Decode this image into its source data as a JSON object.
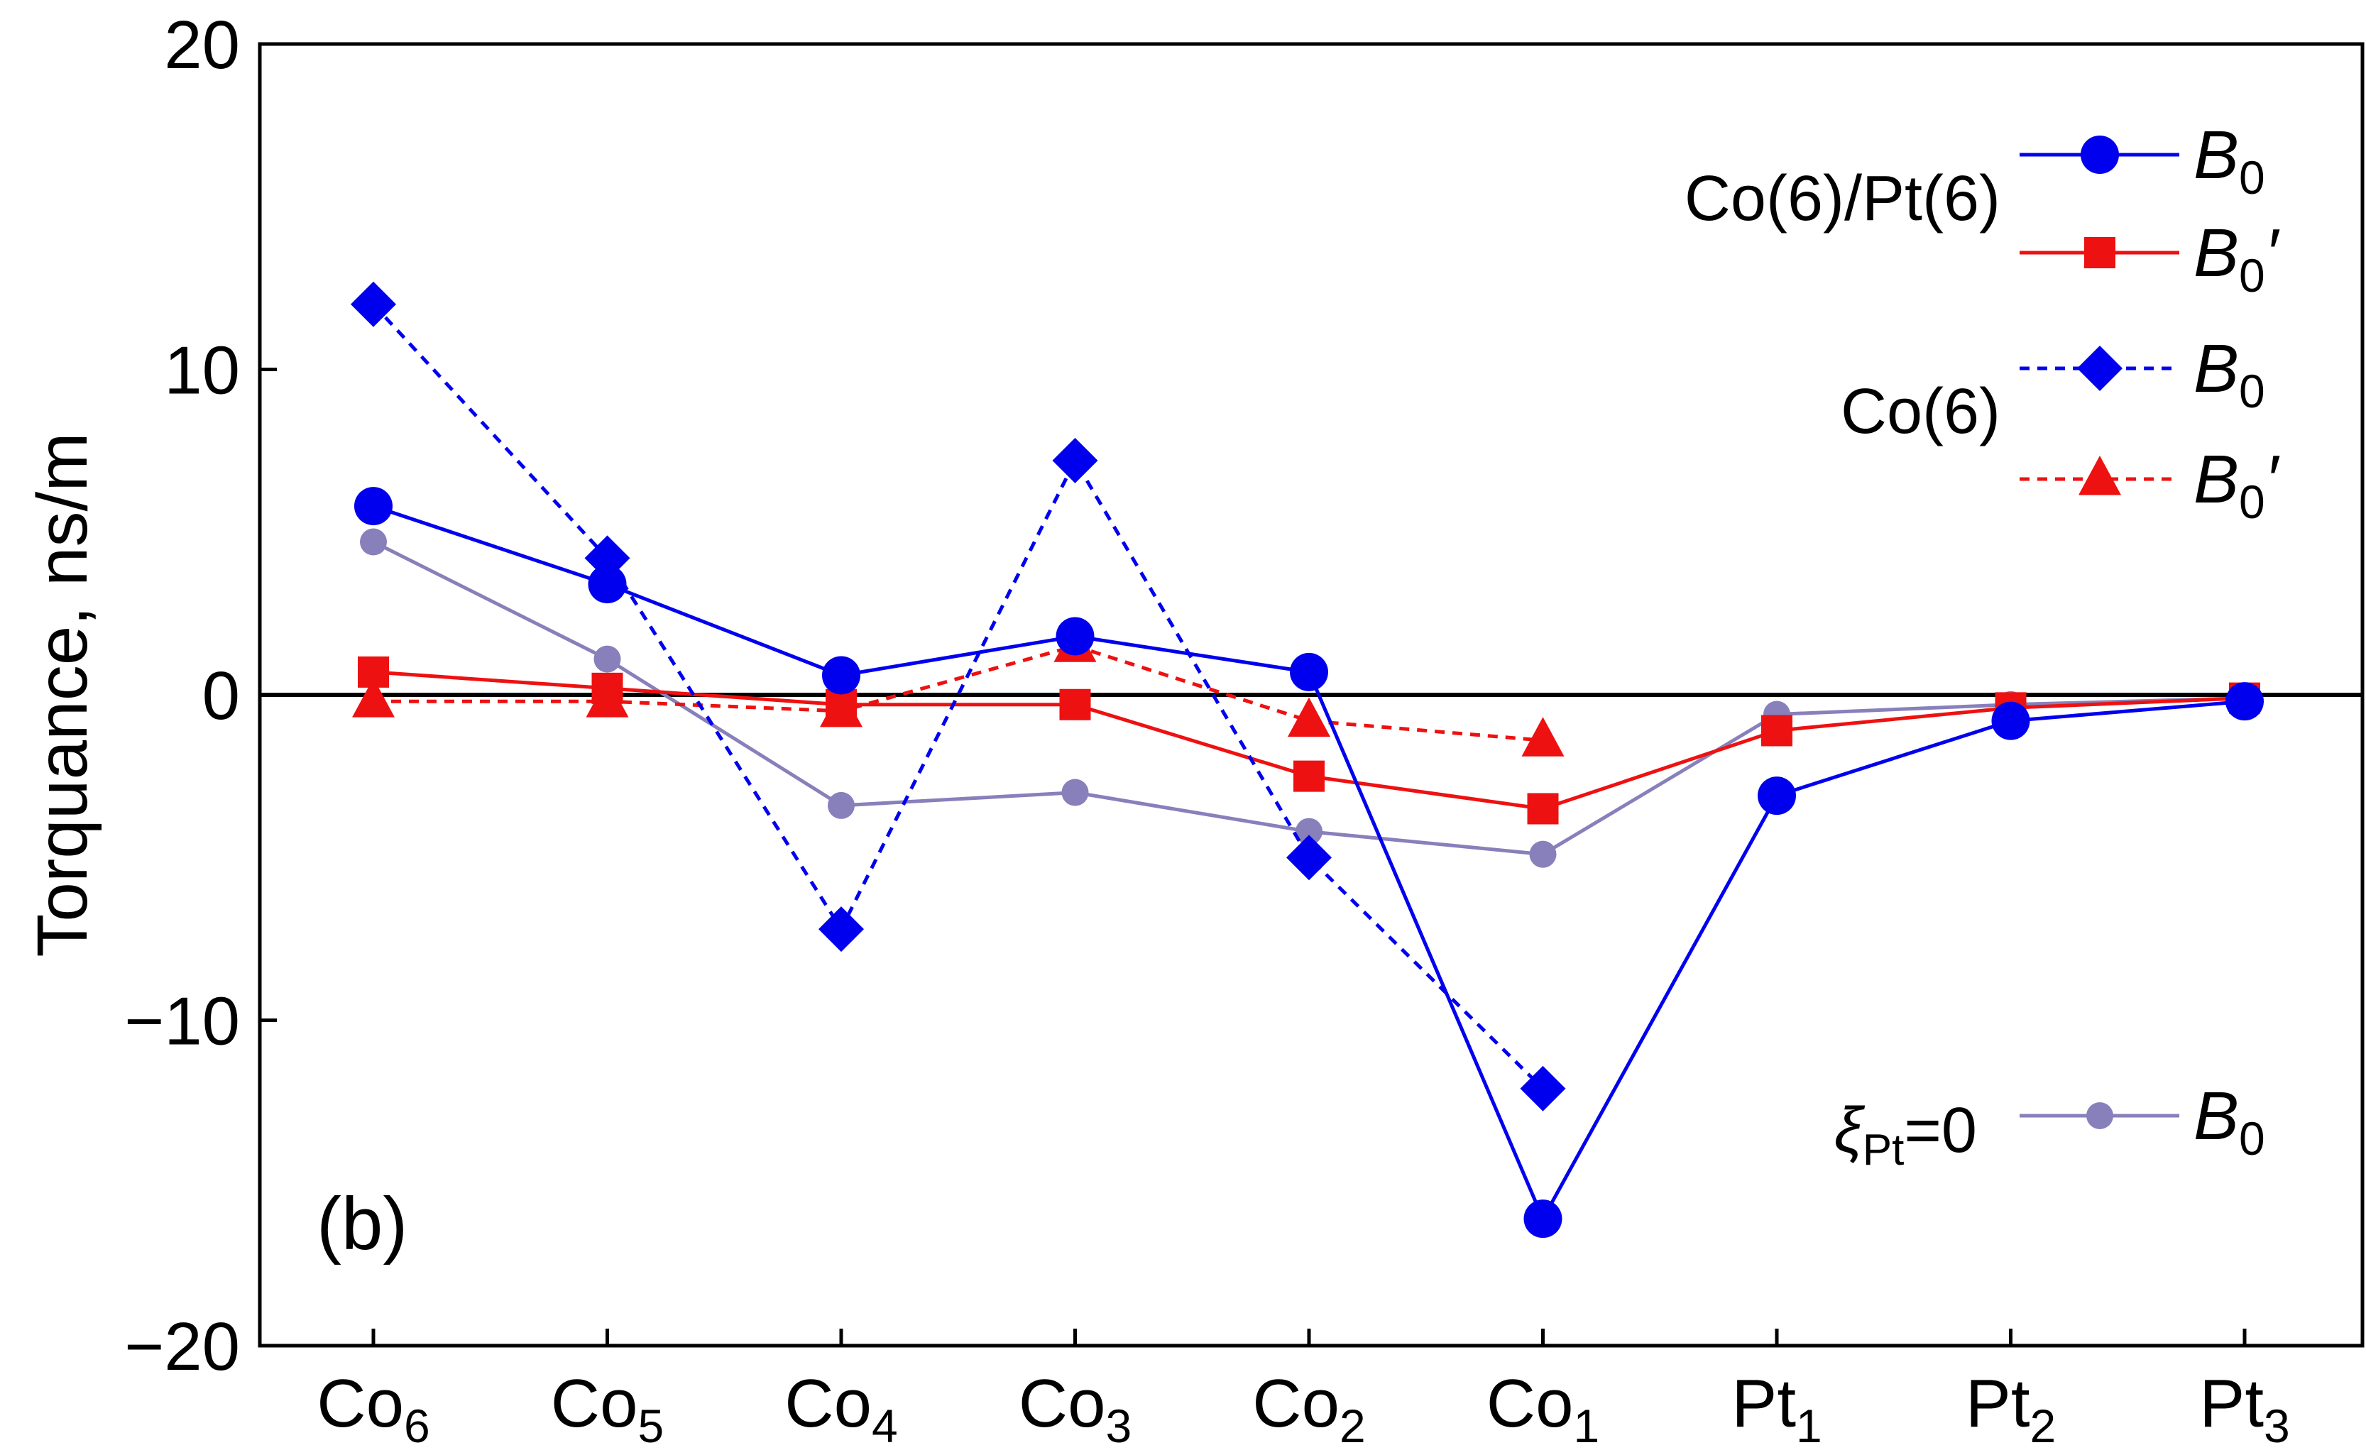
{
  "chart_data": {
    "type": "line",
    "panel_label": "(b)",
    "ylabel": "Torquance, ns/m",
    "xlabel": "",
    "ylim": [
      -20,
      20
    ],
    "yticks": [
      {
        "value": 20,
        "label": "20"
      },
      {
        "value": 10,
        "label": "10"
      },
      {
        "value": 0,
        "label": "0"
      },
      {
        "value": -10,
        "label": "−10"
      },
      {
        "value": -20,
        "label": "−20"
      }
    ],
    "categories": [
      {
        "base": "Co",
        "sub": "6"
      },
      {
        "base": "Co",
        "sub": "5"
      },
      {
        "base": "Co",
        "sub": "4"
      },
      {
        "base": "Co",
        "sub": "3"
      },
      {
        "base": "Co",
        "sub": "2"
      },
      {
        "base": "Co",
        "sub": "1"
      },
      {
        "base": "Pt",
        "sub": "1"
      },
      {
        "base": "Pt",
        "sub": "2"
      },
      {
        "base": "Pt",
        "sub": "3"
      }
    ],
    "series": [
      {
        "name": "Co(6)/Pt(6) B0",
        "group": "Co(6)/Pt(6)",
        "label_base": "B",
        "label_sub": "0",
        "label_prime": "",
        "color": "#0000ee",
        "dash": "solid",
        "marker": "circle",
        "x": [
          0,
          1,
          2,
          3,
          4,
          5,
          6,
          7,
          8
        ],
        "values": [
          5.8,
          3.4,
          0.6,
          1.8,
          0.7,
          -16.1,
          -3.1,
          -0.8,
          -0.2
        ]
      },
      {
        "name": "Co(6)/Pt(6) B0'",
        "group": "Co(6)/Pt(6)",
        "label_base": "B",
        "label_sub": "0",
        "label_prime": "′",
        "color": "#ee1111",
        "dash": "solid",
        "marker": "square",
        "x": [
          0,
          1,
          2,
          3,
          4,
          5,
          6,
          7,
          8
        ],
        "values": [
          0.7,
          0.2,
          -0.3,
          -0.3,
          -2.5,
          -3.5,
          -1.1,
          -0.4,
          -0.1
        ]
      },
      {
        "name": "Co(6) B0",
        "group": "Co(6)",
        "label_base": "B",
        "label_sub": "0",
        "label_prime": "",
        "color": "#0000ee",
        "dash": "dashed",
        "marker": "diamond",
        "x": [
          0,
          1,
          2,
          3,
          4,
          5
        ],
        "values": [
          12.0,
          4.2,
          -7.2,
          7.2,
          -5.0,
          -12.1
        ]
      },
      {
        "name": "Co(6) B0'",
        "group": "Co(6)",
        "label_base": "B",
        "label_sub": "0",
        "label_prime": "′",
        "color": "#ee1111",
        "dash": "dashed",
        "marker": "triangle",
        "x": [
          0,
          1,
          2,
          3,
          4,
          5
        ],
        "values": [
          -0.2,
          -0.2,
          -0.5,
          1.5,
          -0.8,
          -1.4
        ]
      },
      {
        "name": "xiPt=0 B0",
        "group": "ξ_Pt=0",
        "label_base": "B",
        "label_sub": "0",
        "label_prime": "",
        "color": "#8880bb",
        "dash": "solid",
        "marker": "smallcircle",
        "x": [
          0,
          1,
          2,
          3,
          4,
          5,
          6,
          7,
          8
        ],
        "values": [
          4.7,
          1.1,
          -3.4,
          -3.0,
          -4.2,
          -4.9,
          -0.6,
          -0.3,
          -0.1
        ]
      }
    ],
    "legend": {
      "placement": "right",
      "group_labels": {
        "copt": "Co(6)/Pt(6)",
        "co": "Co(6)",
        "xi_symbol": "ξ",
        "xi_sub": "Pt",
        "xi_tail": "=0"
      }
    }
  }
}
